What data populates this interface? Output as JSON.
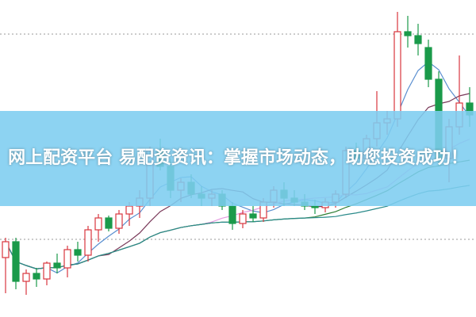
{
  "banner": {
    "title": "网上配资平台 易配资资讯：掌握市场动态，助您投资成功！",
    "background": "#7dcdf0"
  },
  "chart_data": {
    "type": "candlestick",
    "up_color": "#d9363e",
    "down_color": "#1a9a4a",
    "grid": "two dotted horizontal lines",
    "candles": [
      [
        75,
        100,
        30,
        95
      ],
      [
        95,
        100,
        35,
        45
      ],
      [
        45,
        60,
        28,
        55
      ],
      [
        55,
        62,
        38,
        48
      ],
      [
        48,
        70,
        40,
        68
      ],
      [
        68,
        80,
        55,
        62
      ],
      [
        62,
        90,
        50,
        85
      ],
      [
        85,
        95,
        70,
        78
      ],
      [
        78,
        115,
        70,
        110
      ],
      [
        110,
        130,
        95,
        125
      ],
      [
        125,
        128,
        108,
        112
      ],
      [
        112,
        135,
        105,
        130
      ],
      [
        130,
        145,
        115,
        140
      ],
      [
        140,
        160,
        125,
        150
      ],
      [
        150,
        215,
        140,
        210
      ],
      [
        210,
        225,
        185,
        190
      ],
      [
        190,
        200,
        150,
        160
      ],
      [
        160,
        175,
        145,
        170
      ],
      [
        170,
        180,
        150,
        155
      ],
      [
        155,
        165,
        140,
        150
      ],
      [
        150,
        160,
        140,
        155
      ],
      [
        155,
        160,
        135,
        140
      ],
      [
        140,
        145,
        110,
        118
      ],
      [
        118,
        135,
        112,
        130
      ],
      [
        130,
        140,
        120,
        125
      ],
      [
        125,
        150,
        120,
        145
      ],
      [
        145,
        165,
        138,
        160
      ],
      [
        160,
        170,
        140,
        150
      ],
      [
        150,
        160,
        140,
        145
      ],
      [
        145,
        155,
        135,
        140
      ],
      [
        140,
        148,
        130,
        138
      ],
      [
        138,
        150,
        132,
        145
      ],
      [
        145,
        160,
        138,
        155
      ],
      [
        155,
        215,
        150,
        210
      ],
      [
        210,
        220,
        195,
        200
      ],
      [
        200,
        230,
        195,
        225
      ],
      [
        225,
        285,
        215,
        245
      ],
      [
        245,
        260,
        230,
        250
      ],
      [
        250,
        385,
        240,
        360
      ],
      [
        360,
        380,
        340,
        355
      ],
      [
        355,
        370,
        330,
        345
      ],
      [
        340,
        350,
        290,
        300
      ],
      [
        300,
        310,
        190,
        200
      ],
      [
        200,
        250,
        170,
        240
      ],
      [
        240,
        330,
        230,
        270
      ],
      [
        270,
        290,
        240,
        255
      ]
    ],
    "moving_averages": [
      {
        "period": 5,
        "color": "#5a8fd0"
      },
      {
        "period": 10,
        "color": "#7a3a5a"
      },
      {
        "period": 20,
        "color": "#e59ae0"
      },
      {
        "period": 30,
        "color": "#2e7d32"
      },
      {
        "period": 60,
        "color": "#2a8a8a"
      }
    ]
  }
}
